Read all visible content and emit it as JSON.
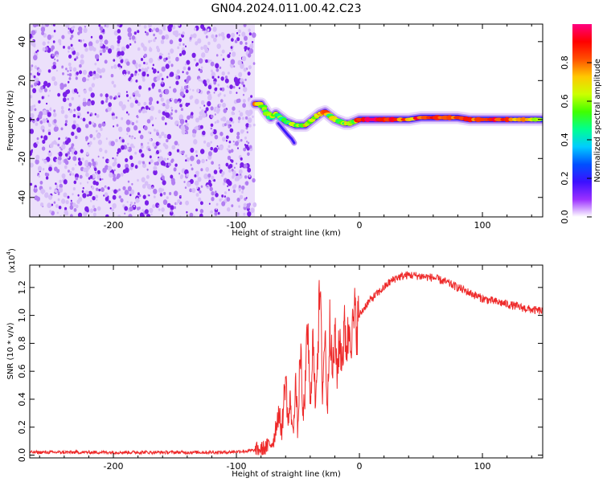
{
  "figure_title": "GN04.2024.011.00.42.C23",
  "colors": {
    "snr_line": "#ee2a2a",
    "frame": "#000000",
    "scatter_noise": "#8a2be2"
  },
  "chart_data": [
    {
      "type": "heatmap",
      "xlabel": "Height of straight line (km)",
      "ylabel": "Frequency (Hz)",
      "xlim": [
        -268,
        149
      ],
      "ylim": [
        -50,
        49
      ],
      "x_ticks": [
        "-200",
        "-100",
        "0",
        "100"
      ],
      "x_tick_values": [
        -200,
        -100,
        0,
        100
      ],
      "y_ticks": [
        "-40",
        "-20",
        "0",
        "20",
        "40"
      ],
      "y_tick_values": [
        -40,
        -20,
        0,
        20,
        40
      ],
      "grid": false,
      "colorbar": {
        "label": "Normalized spectral amplitude",
        "range": [
          0,
          1
        ],
        "ticks": [
          "0.0",
          "0.2",
          "0.4",
          "0.6",
          "0.8"
        ],
        "tick_values": [
          0,
          0.2,
          0.4,
          0.6,
          0.8
        ],
        "colormap": [
          "#ffffff",
          "#9b30ff",
          "#3b10ff",
          "#0050ff",
          "#00ccff",
          "#00ff90",
          "#40ff00",
          "#ccff00",
          "#ffc800",
          "#ff5000",
          "#ff0000",
          "#ff0080"
        ]
      },
      "noise_region_x": [
        -268,
        -85
      ],
      "ridge": {
        "x": [
          -85,
          -80,
          -76,
          -72,
          -68,
          -64,
          -60,
          -56,
          -52,
          -48,
          -44,
          -40,
          -36,
          -32,
          -28,
          -24,
          -20,
          -16,
          -12,
          -8,
          -4,
          0,
          10,
          20,
          30,
          40,
          50,
          60,
          70,
          80,
          90,
          100,
          110,
          120,
          130,
          140,
          149
        ],
        "y": [
          8,
          8,
          4,
          1,
          3,
          1,
          -1,
          -2,
          -3,
          -3,
          -3,
          -1,
          1,
          3,
          4,
          2,
          0,
          -1,
          -2,
          -2,
          -1,
          0,
          0,
          0,
          0,
          0,
          1,
          1,
          1,
          1,
          0,
          0,
          0,
          0,
          0,
          0,
          0
        ],
        "amplitude": [
          0.7,
          0.75,
          0.45,
          0.55,
          0.6,
          0.5,
          0.55,
          0.5,
          0.6,
          0.55,
          0.65,
          0.5,
          0.6,
          0.7,
          0.8,
          0.55,
          0.6,
          0.45,
          0.55,
          0.7,
          0.6,
          0.9,
          0.95,
          0.9,
          0.8,
          0.75,
          0.85,
          0.8,
          0.9,
          0.85,
          0.8,
          0.95,
          0.9,
          0.85,
          0.7,
          0.65,
          0.6
        ]
      },
      "side_branch": {
        "x": [
          -66,
          -62,
          -58,
          -55,
          -53
        ],
        "y": [
          -2,
          -5,
          -8,
          -10,
          -12
        ]
      }
    },
    {
      "type": "line",
      "xlabel": "Height of straight line (km)",
      "ylabel": "SNR (10 * v/v)",
      "y_multiplier": "(x10",
      "y_multiplier_exp": "4",
      "y_multiplier_close": ")",
      "xlim": [
        -268,
        149
      ],
      "ylim": [
        -0.02,
        1.36
      ],
      "x_ticks": [
        "-200",
        "-100",
        "0",
        "100"
      ],
      "x_tick_values": [
        -200,
        -100,
        0,
        100
      ],
      "y_ticks": [
        "0.0",
        "0.2",
        "0.4",
        "0.6",
        "0.8",
        "1.0",
        "1.2"
      ],
      "y_tick_values": [
        0,
        0.2,
        0.4,
        0.6,
        0.8,
        1.0,
        1.2
      ],
      "grid": false,
      "series": [
        {
          "x": [
            -268,
            -250,
            -230,
            -200,
            -170,
            -140,
            -110,
            -90,
            -80,
            -75,
            -70,
            -66,
            -63,
            -60,
            -58,
            -56,
            -54,
            -52,
            -50,
            -48,
            -46,
            -44,
            -42,
            -40,
            -38,
            -36,
            -34,
            -32,
            -30,
            -28,
            -26,
            -24,
            -22,
            -20,
            -18,
            -16,
            -14,
            -12,
            -10,
            -8,
            -6,
            -4,
            -2,
            0,
            5,
            10,
            15,
            20,
            25,
            30,
            35,
            40,
            50,
            60,
            70,
            80,
            90,
            100,
            110,
            120,
            130,
            140,
            149
          ],
          "values": [
            0.02,
            0.02,
            0.02,
            0.02,
            0.02,
            0.02,
            0.02,
            0.03,
            0.04,
            0.06,
            0.1,
            0.3,
            0.18,
            0.58,
            0.22,
            0.4,
            0.12,
            0.55,
            0.15,
            0.8,
            0.25,
            0.48,
            0.95,
            0.3,
            0.85,
            0.4,
            0.75,
            1.2,
            0.45,
            0.9,
            0.3,
            1.05,
            0.55,
            0.85,
            0.6,
            0.82,
            0.7,
            0.9,
            0.78,
            0.95,
            0.85,
            1.0,
            0.92,
            1.0,
            1.07,
            1.12,
            1.16,
            1.2,
            1.24,
            1.27,
            1.28,
            1.29,
            1.28,
            1.27,
            1.24,
            1.2,
            1.16,
            1.12,
            1.1,
            1.08,
            1.06,
            1.04,
            1.03
          ]
        }
      ]
    }
  ]
}
